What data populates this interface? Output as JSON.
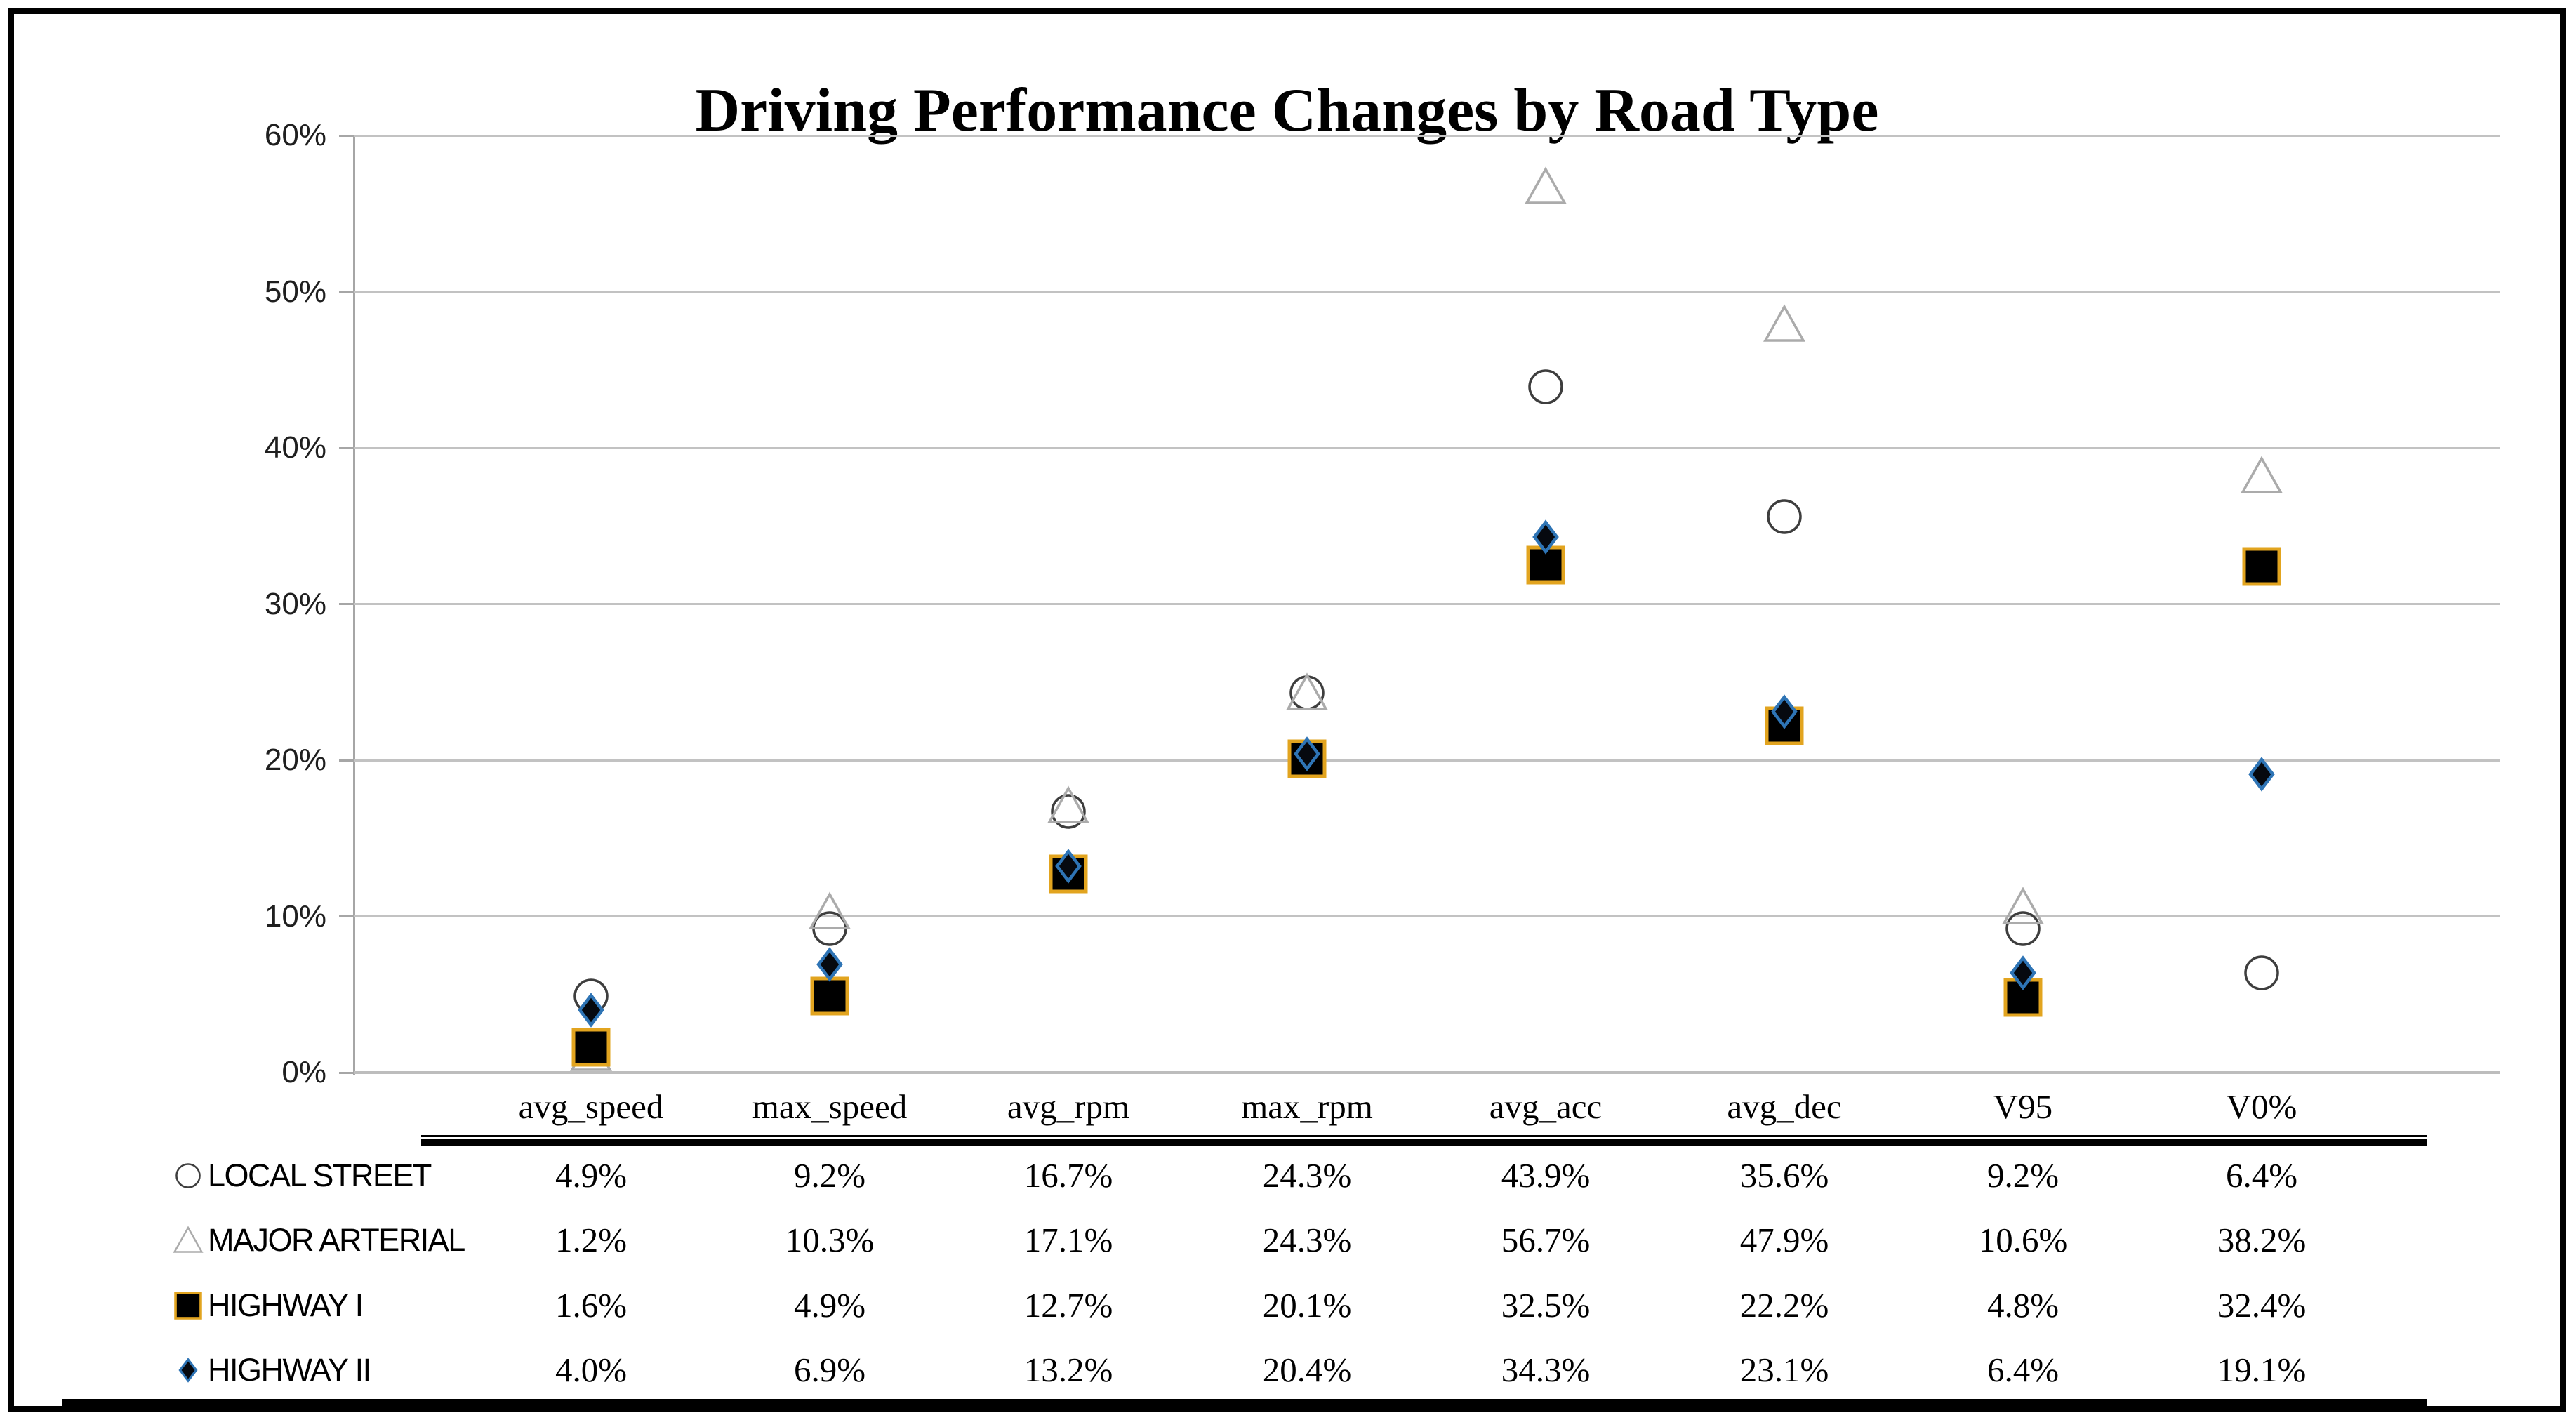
{
  "chart_data": {
    "type": "scatter",
    "title": "Driving Performance Changes by Road Type",
    "categories": [
      "avg_speed",
      "max_speed",
      "avg_rpm",
      "max_rpm",
      "avg_acc",
      "avg_dec",
      "V95",
      "V0%"
    ],
    "series": [
      {
        "name": "LOCAL STREET",
        "marker": "circle",
        "values": [
          4.9,
          9.2,
          16.7,
          24.3,
          43.9,
          35.6,
          9.2,
          6.4
        ]
      },
      {
        "name": "MAJOR ARTERIAL",
        "marker": "triangle",
        "values": [
          1.2,
          10.3,
          17.1,
          24.3,
          56.7,
          47.9,
          10.6,
          38.2
        ]
      },
      {
        "name": "HIGHWAY I",
        "marker": "square",
        "values": [
          1.6,
          4.9,
          12.7,
          20.1,
          32.5,
          22.2,
          4.8,
          32.4
        ]
      },
      {
        "name": "HIGHWAY II",
        "marker": "diamond",
        "values": [
          4.0,
          6.9,
          13.2,
          20.4,
          34.3,
          23.1,
          6.4,
          19.1
        ]
      }
    ],
    "y_axis": {
      "ticks": [
        "60%",
        "50%",
        "40%",
        "30%",
        "20%",
        "10%",
        "0%"
      ],
      "min": 0,
      "max": 60
    },
    "grid": true,
    "legend_position": "bottom-left, as table row labels"
  },
  "table": {
    "columns": [
      "avg_speed",
      "max_speed",
      "avg_rpm",
      "max_rpm",
      "avg_acc",
      "avg_dec",
      "V95",
      "V0%"
    ],
    "rows": [
      {
        "label": "LOCAL STREET",
        "values": [
          "4.9%",
          "9.2%",
          "16.7%",
          "24.3%",
          "43.9%",
          "35.6%",
          "9.2%",
          "6.4%"
        ]
      },
      {
        "label": "MAJOR ARTERIAL",
        "values": [
          "1.2%",
          "10.3%",
          "17.1%",
          "24.3%",
          "56.7%",
          "47.9%",
          "10.6%",
          "38.2%"
        ]
      },
      {
        "label": "HIGHWAY I",
        "values": [
          "1.6%",
          "4.9%",
          "12.7%",
          "20.1%",
          "32.5%",
          "22.2%",
          "4.8%",
          "32.4%"
        ]
      },
      {
        "label": "HIGHWAY II",
        "values": [
          "4.0%",
          "6.9%",
          "13.2%",
          "20.4%",
          "34.3%",
          "23.1%",
          "6.4%",
          "19.1%"
        ]
      }
    ]
  },
  "colors": {
    "circle_stroke": "#3e3e3e",
    "triangle_stroke": "#ababab",
    "square_fill": "#000000",
    "square_stroke": "#e2a41f",
    "diamond_fill": "#06090f",
    "diamond_stroke": "#2e74b5",
    "gridline": "#c2c2c2",
    "axis": "#a6a6a6",
    "rule": "#000000"
  }
}
